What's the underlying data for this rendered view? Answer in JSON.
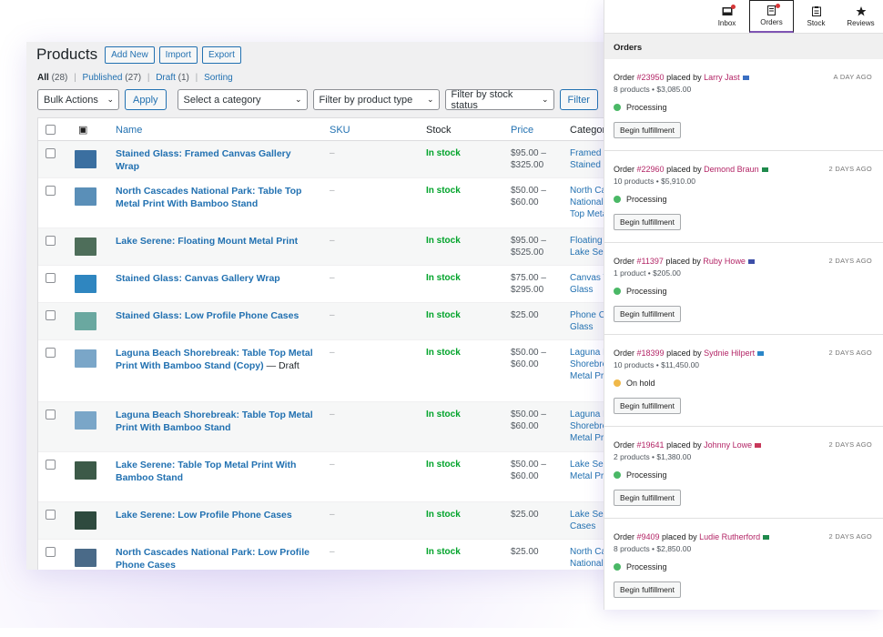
{
  "products": {
    "title": "Products",
    "buttons": [
      "Add New",
      "Import",
      "Export"
    ],
    "filter_links": {
      "all": "All",
      "all_count": "(28)",
      "published": "Published",
      "published_count": "(27)",
      "draft": "Draft",
      "draft_count": "(1)",
      "sorting": "Sorting"
    },
    "toolbar": {
      "bulk_actions": "Bulk Actions",
      "apply": "Apply",
      "category": "Select a category",
      "product_type": "Filter by product type",
      "stock_status": "Filter by stock status",
      "filter": "Filter"
    },
    "columns": {
      "name": "Name",
      "sku": "SKU",
      "stock": "Stock",
      "price": "Price",
      "categories": "Categori"
    },
    "rows": [
      {
        "name": "Stained Glass: Framed Canvas Gallery Wrap",
        "draft": "",
        "sku": "–",
        "stock": "In stock",
        "price": "$95.00 –\n$325.00",
        "cat": "Framed C\nStained G",
        "h": 41,
        "thumb": "#3b6fa0"
      },
      {
        "name": "North Cascades National Park: Table Top Metal Print With Bamboo Stand",
        "draft": "",
        "sku": "–",
        "stock": "In stock",
        "price": "$50.00 –\n$60.00",
        "cat": "North Ca\nNational\nTop Meta",
        "h": 55,
        "thumb": "#5a8fb8"
      },
      {
        "name": "Lake Serene: Floating Mount Metal Print",
        "draft": "",
        "sku": "–",
        "stock": "In stock",
        "price": "$95.00 –\n$525.00",
        "cat": "Floating M\nLake Sere",
        "h": 41,
        "thumb": "#4e6e5a"
      },
      {
        "name": "Stained Glass: Canvas Gallery Wrap",
        "draft": "",
        "sku": "–",
        "stock": "In stock",
        "price": "$75.00 –\n$295.00",
        "cat": "Canvas W\nGlass",
        "h": 41,
        "thumb": "#2f86c0"
      },
      {
        "name": "Stained Glass: Low Profile Phone Cases",
        "draft": "",
        "sku": "–",
        "stock": "In stock",
        "price": "$25.00",
        "cat": "Phone Ca\nGlass",
        "h": 41,
        "thumb": "#6aa8a0"
      },
      {
        "name": "Laguna Beach Shorebreak: Table Top Metal Print With Bamboo Stand (Copy)",
        "draft": " — Draft",
        "sku": "–",
        "stock": "In stock",
        "price": "$50.00 –\n$60.00",
        "cat": "Laguna B\nShorebre\nMetal Pri",
        "h": 68,
        "thumb": "#7aa6c8"
      },
      {
        "name": "Laguna Beach Shorebreak: Table Top Metal Print With Bamboo Stand",
        "draft": "",
        "sku": "–",
        "stock": "In stock",
        "price": "$50.00 –\n$60.00",
        "cat": "Laguna B\nShorebre\nMetal Pri",
        "h": 55,
        "thumb": "#7aa6c8"
      },
      {
        "name": "Lake Serene: Table Top Metal Print With Bamboo Stand",
        "draft": "",
        "sku": "–",
        "stock": "In stock",
        "price": "$50.00 –\n$60.00",
        "cat": "Lake Sere\nMetal Pri",
        "h": 55,
        "thumb": "#3c5a48"
      },
      {
        "name": "Lake Serene: Low Profile Phone Cases",
        "draft": "",
        "sku": "–",
        "stock": "In stock",
        "price": "$25.00",
        "cat": "Lake Sere\nCases",
        "h": 41,
        "thumb": "#2e4a3e"
      },
      {
        "name": "North Cascades National Park: Low Profile Phone Cases",
        "draft": "",
        "sku": "–",
        "stock": "In stock",
        "price": "$25.00",
        "cat": "North Ca\nNational",
        "h": 41,
        "thumb": "#4a6a88"
      }
    ]
  },
  "orders_panel": {
    "tabs": [
      {
        "label": "Inbox",
        "icon": "inbox-icon",
        "active": false,
        "dot": true
      },
      {
        "label": "Orders",
        "icon": "orders-icon",
        "active": true,
        "dot": true
      },
      {
        "label": "Stock",
        "icon": "stock-icon",
        "active": false,
        "dot": false
      },
      {
        "label": "Reviews",
        "icon": "star-icon",
        "active": false,
        "dot": false
      }
    ],
    "header": "Orders",
    "orders": [
      {
        "prefix": "Order ",
        "num": "#23950",
        "mid": " placed by ",
        "customer": "Larry Jast",
        "ago": "A DAY AGO",
        "summary": "8 products • $3,085.00",
        "status": "Processing",
        "status_color": "#4ab866",
        "flag": "#3a6fc2",
        "action": "Begin fulfillment"
      },
      {
        "prefix": "Order ",
        "num": "#22960",
        "mid": " placed by ",
        "customer": "Demond Braun",
        "ago": "2 DAYS AGO",
        "summary": "10 products • $5,910.00",
        "status": "Processing",
        "status_color": "#4ab866",
        "flag": "#1f8a4c",
        "action": "Begin fulfillment"
      },
      {
        "prefix": "Order ",
        "num": "#11397",
        "mid": " placed by ",
        "customer": "Ruby Howe",
        "ago": "2 DAYS AGO",
        "summary": "1 product • $205.00",
        "status": "Processing",
        "status_color": "#4ab866",
        "flag": "#3d4fa8",
        "action": "Begin fulfillment"
      },
      {
        "prefix": "Order ",
        "num": "#18399",
        "mid": " placed by ",
        "customer": "Sydnie Hilpert",
        "ago": "2 DAYS AGO",
        "summary": "10 products • $11,450.00",
        "status": "On hold",
        "status_color": "#f0b849",
        "flag": "#2a86c8",
        "action": "Begin fulfillment"
      },
      {
        "prefix": "Order ",
        "num": "#19641",
        "mid": " placed by ",
        "customer": "Johnny Lowe",
        "ago": "2 DAYS AGO",
        "summary": "2 products • $1,380.00",
        "status": "Processing",
        "status_color": "#4ab866",
        "flag": "#c8385a",
        "action": "Begin fulfillment"
      },
      {
        "prefix": "Order ",
        "num": "#9409",
        "mid": " placed by ",
        "customer": "Ludie Rutherford",
        "ago": "2 DAYS AGO",
        "summary": "8 products • $2,850.00",
        "status": "Processing",
        "status_color": "#4ab866",
        "flag": "#1f8a4c",
        "action": "Begin fulfillment"
      }
    ]
  }
}
